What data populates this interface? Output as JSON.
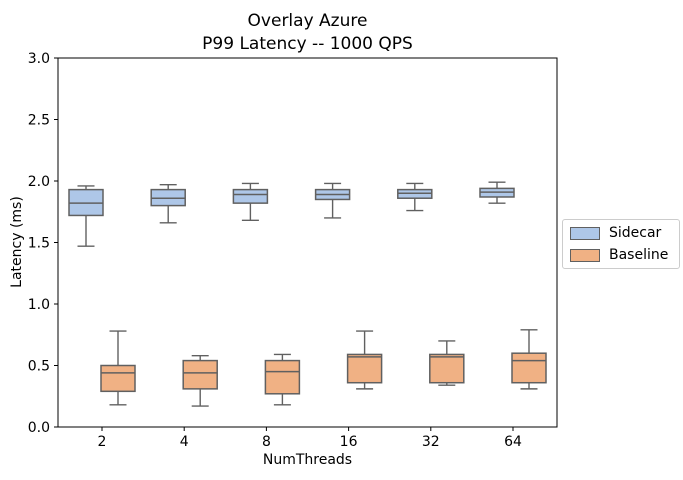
{
  "title_line1": "Overlay Azure",
  "title_line2": "P99 Latency -- 1000 QPS",
  "chart_data": {
    "type": "boxplot",
    "title": "Overlay Azure",
    "subtitle": "P99 Latency -- 1000 QPS",
    "xlabel": "NumThreads",
    "ylabel": "Latency (ms)",
    "categories": [
      "2",
      "4",
      "8",
      "16",
      "32",
      "64"
    ],
    "ylim": [
      0.0,
      3.0
    ],
    "ytick_labels": [
      "0.0",
      "0.5",
      "1.0",
      "1.5",
      "2.0",
      "2.5",
      "3.0"
    ],
    "grid": false,
    "legend_position": "center-right-outside",
    "series": [
      {
        "name": "Sidecar",
        "color": "#aec7e8",
        "boxes": [
          {
            "whislo": 1.47,
            "q1": 1.72,
            "med": 1.82,
            "q3": 1.93,
            "whishi": 1.96
          },
          {
            "whislo": 1.66,
            "q1": 1.8,
            "med": 1.86,
            "q3": 1.93,
            "whishi": 1.97
          },
          {
            "whislo": 1.68,
            "q1": 1.82,
            "med": 1.89,
            "q3": 1.93,
            "whishi": 1.98
          },
          {
            "whislo": 1.7,
            "q1": 1.85,
            "med": 1.89,
            "q3": 1.93,
            "whishi": 1.98
          },
          {
            "whislo": 1.76,
            "q1": 1.86,
            "med": 1.9,
            "q3": 1.93,
            "whishi": 1.98
          },
          {
            "whislo": 1.82,
            "q1": 1.87,
            "med": 1.91,
            "q3": 1.94,
            "whishi": 1.99
          }
        ]
      },
      {
        "name": "Baseline",
        "color": "#f0b184",
        "boxes": [
          {
            "whislo": 0.18,
            "q1": 0.29,
            "med": 0.44,
            "q3": 0.5,
            "whishi": 0.78
          },
          {
            "whislo": 0.17,
            "q1": 0.31,
            "med": 0.44,
            "q3": 0.54,
            "whishi": 0.58
          },
          {
            "whislo": 0.18,
            "q1": 0.27,
            "med": 0.45,
            "q3": 0.54,
            "whishi": 0.59
          },
          {
            "whislo": 0.31,
            "q1": 0.36,
            "med": 0.57,
            "q3": 0.59,
            "whishi": 0.78
          },
          {
            "whislo": 0.34,
            "q1": 0.36,
            "med": 0.57,
            "q3": 0.59,
            "whishi": 0.7
          },
          {
            "whislo": 0.31,
            "q1": 0.36,
            "med": 0.54,
            "q3": 0.6,
            "whishi": 0.79
          }
        ]
      }
    ]
  },
  "colors": {
    "edge": "#606060",
    "spine": "#000000",
    "tick_text": "#000000",
    "legend_border": "#cccccc",
    "background": "#ffffff"
  }
}
